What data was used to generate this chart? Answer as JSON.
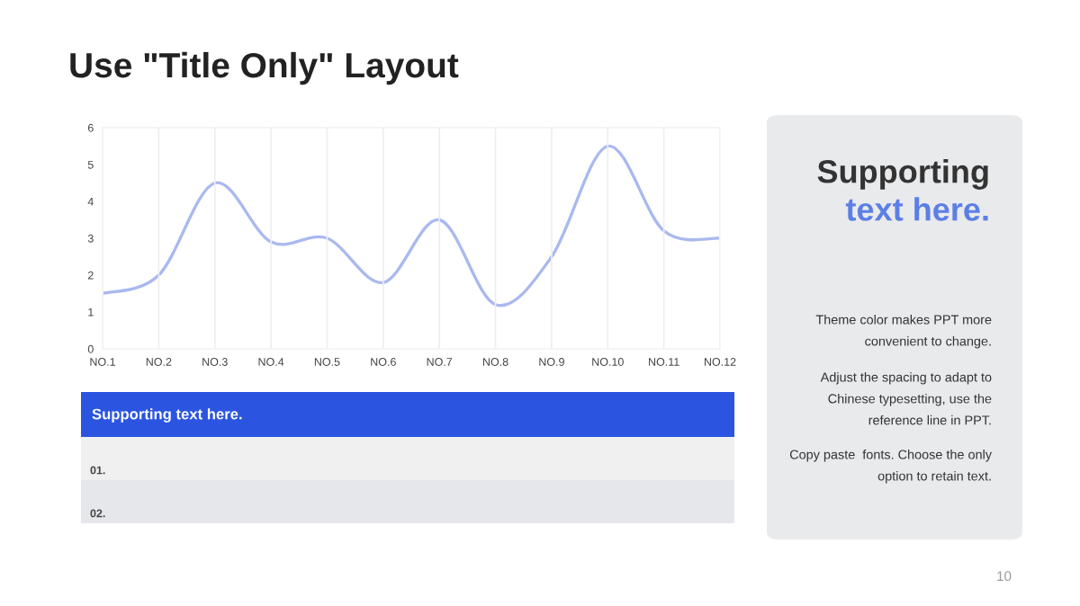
{
  "chart_data": {
    "type": "line",
    "title": "Use \"Title Only\" Layout",
    "categories": [
      "NO.1",
      "NO.2",
      "NO.3",
      "NO.4",
      "NO.5",
      "NO.6",
      "NO.7",
      "NO.8",
      "NO.9",
      "NO.10",
      "NO.11",
      "NO.12"
    ],
    "series": [
      {
        "color": "#a9b9ef",
        "values": [
          1.5,
          2,
          4.5,
          2.9,
          3,
          1.8,
          3.5,
          1.2,
          2.5,
          5.5,
          3.2,
          3
        ]
      }
    ],
    "ylim": [
      0,
      6
    ],
    "yticks": [
      0,
      1,
      2,
      3,
      4,
      5,
      6
    ],
    "grid": "x",
    "marker": "none",
    "line_style": "solid",
    "annotations": [
      "Supporting",
      "text here.",
      "Theme color makes PPT more\nconvenient to change.",
      "Adjust the spacing to adapt to\nChinese typesetting, use the\nreference line in PPT.",
      "Copy paste  fonts. Choose the only\noption to retain text.",
      "Supporting text here.",
      "01.",
      "02.",
      "10"
    ]
  }
}
